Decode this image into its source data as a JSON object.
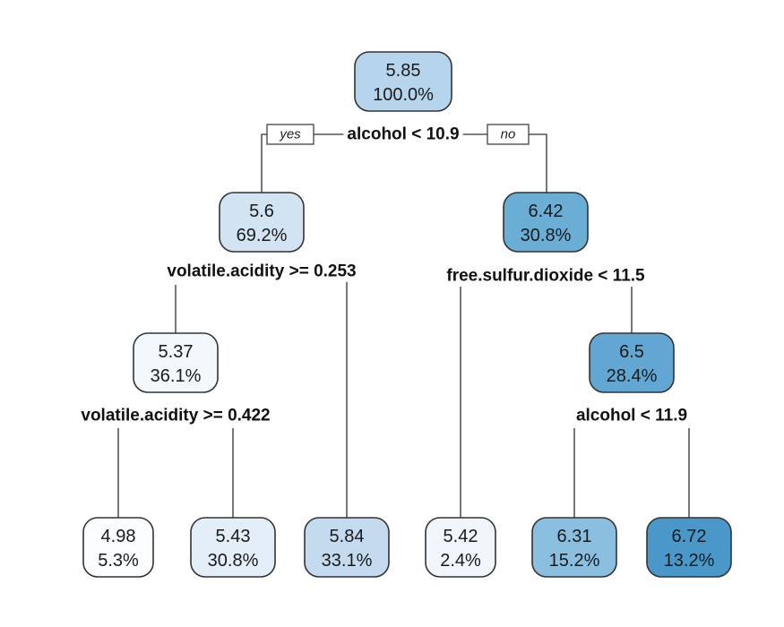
{
  "tree": {
    "labels": {
      "yes": "yes",
      "no": "no"
    },
    "nodes": [
      {
        "id": "root",
        "value": "5.85",
        "percent": "100.0%",
        "color": "#b6d4eb"
      },
      {
        "id": "n2",
        "value": "5.6",
        "percent": "69.2%",
        "color": "#d2e3f3"
      },
      {
        "id": "n3",
        "value": "6.42",
        "percent": "30.8%",
        "color": "#6aaed6"
      },
      {
        "id": "n4",
        "value": "5.37",
        "percent": "36.1%",
        "color": "#f3f8fd"
      },
      {
        "id": "n7",
        "value": "6.5",
        "percent": "28.4%",
        "color": "#62a7d3"
      },
      {
        "id": "l1",
        "value": "4.98",
        "percent": "5.3%",
        "color": "#fbfdff"
      },
      {
        "id": "l2",
        "value": "5.43",
        "percent": "30.8%",
        "color": "#e4eef8"
      },
      {
        "id": "l3",
        "value": "5.84",
        "percent": "33.1%",
        "color": "#c4dbef"
      },
      {
        "id": "l4",
        "value": "5.42",
        "percent": "2.4%",
        "color": "#f0f6fc"
      },
      {
        "id": "l5",
        "value": "6.31",
        "percent": "15.2%",
        "color": "#8bbfe0"
      },
      {
        "id": "l6",
        "value": "6.72",
        "percent": "13.2%",
        "color": "#4a98c9"
      }
    ],
    "splits": [
      {
        "id": "s_root",
        "text": "alcohol < 10.9"
      },
      {
        "id": "s_n2",
        "text": "volatile.acidity >= 0.253"
      },
      {
        "id": "s_n3",
        "text": "free.sulfur.dioxide < 11.5"
      },
      {
        "id": "s_n4",
        "text": "volatile.acidity >= 0.422"
      },
      {
        "id": "s_n7",
        "text": "alcohol < 11.9"
      }
    ]
  }
}
